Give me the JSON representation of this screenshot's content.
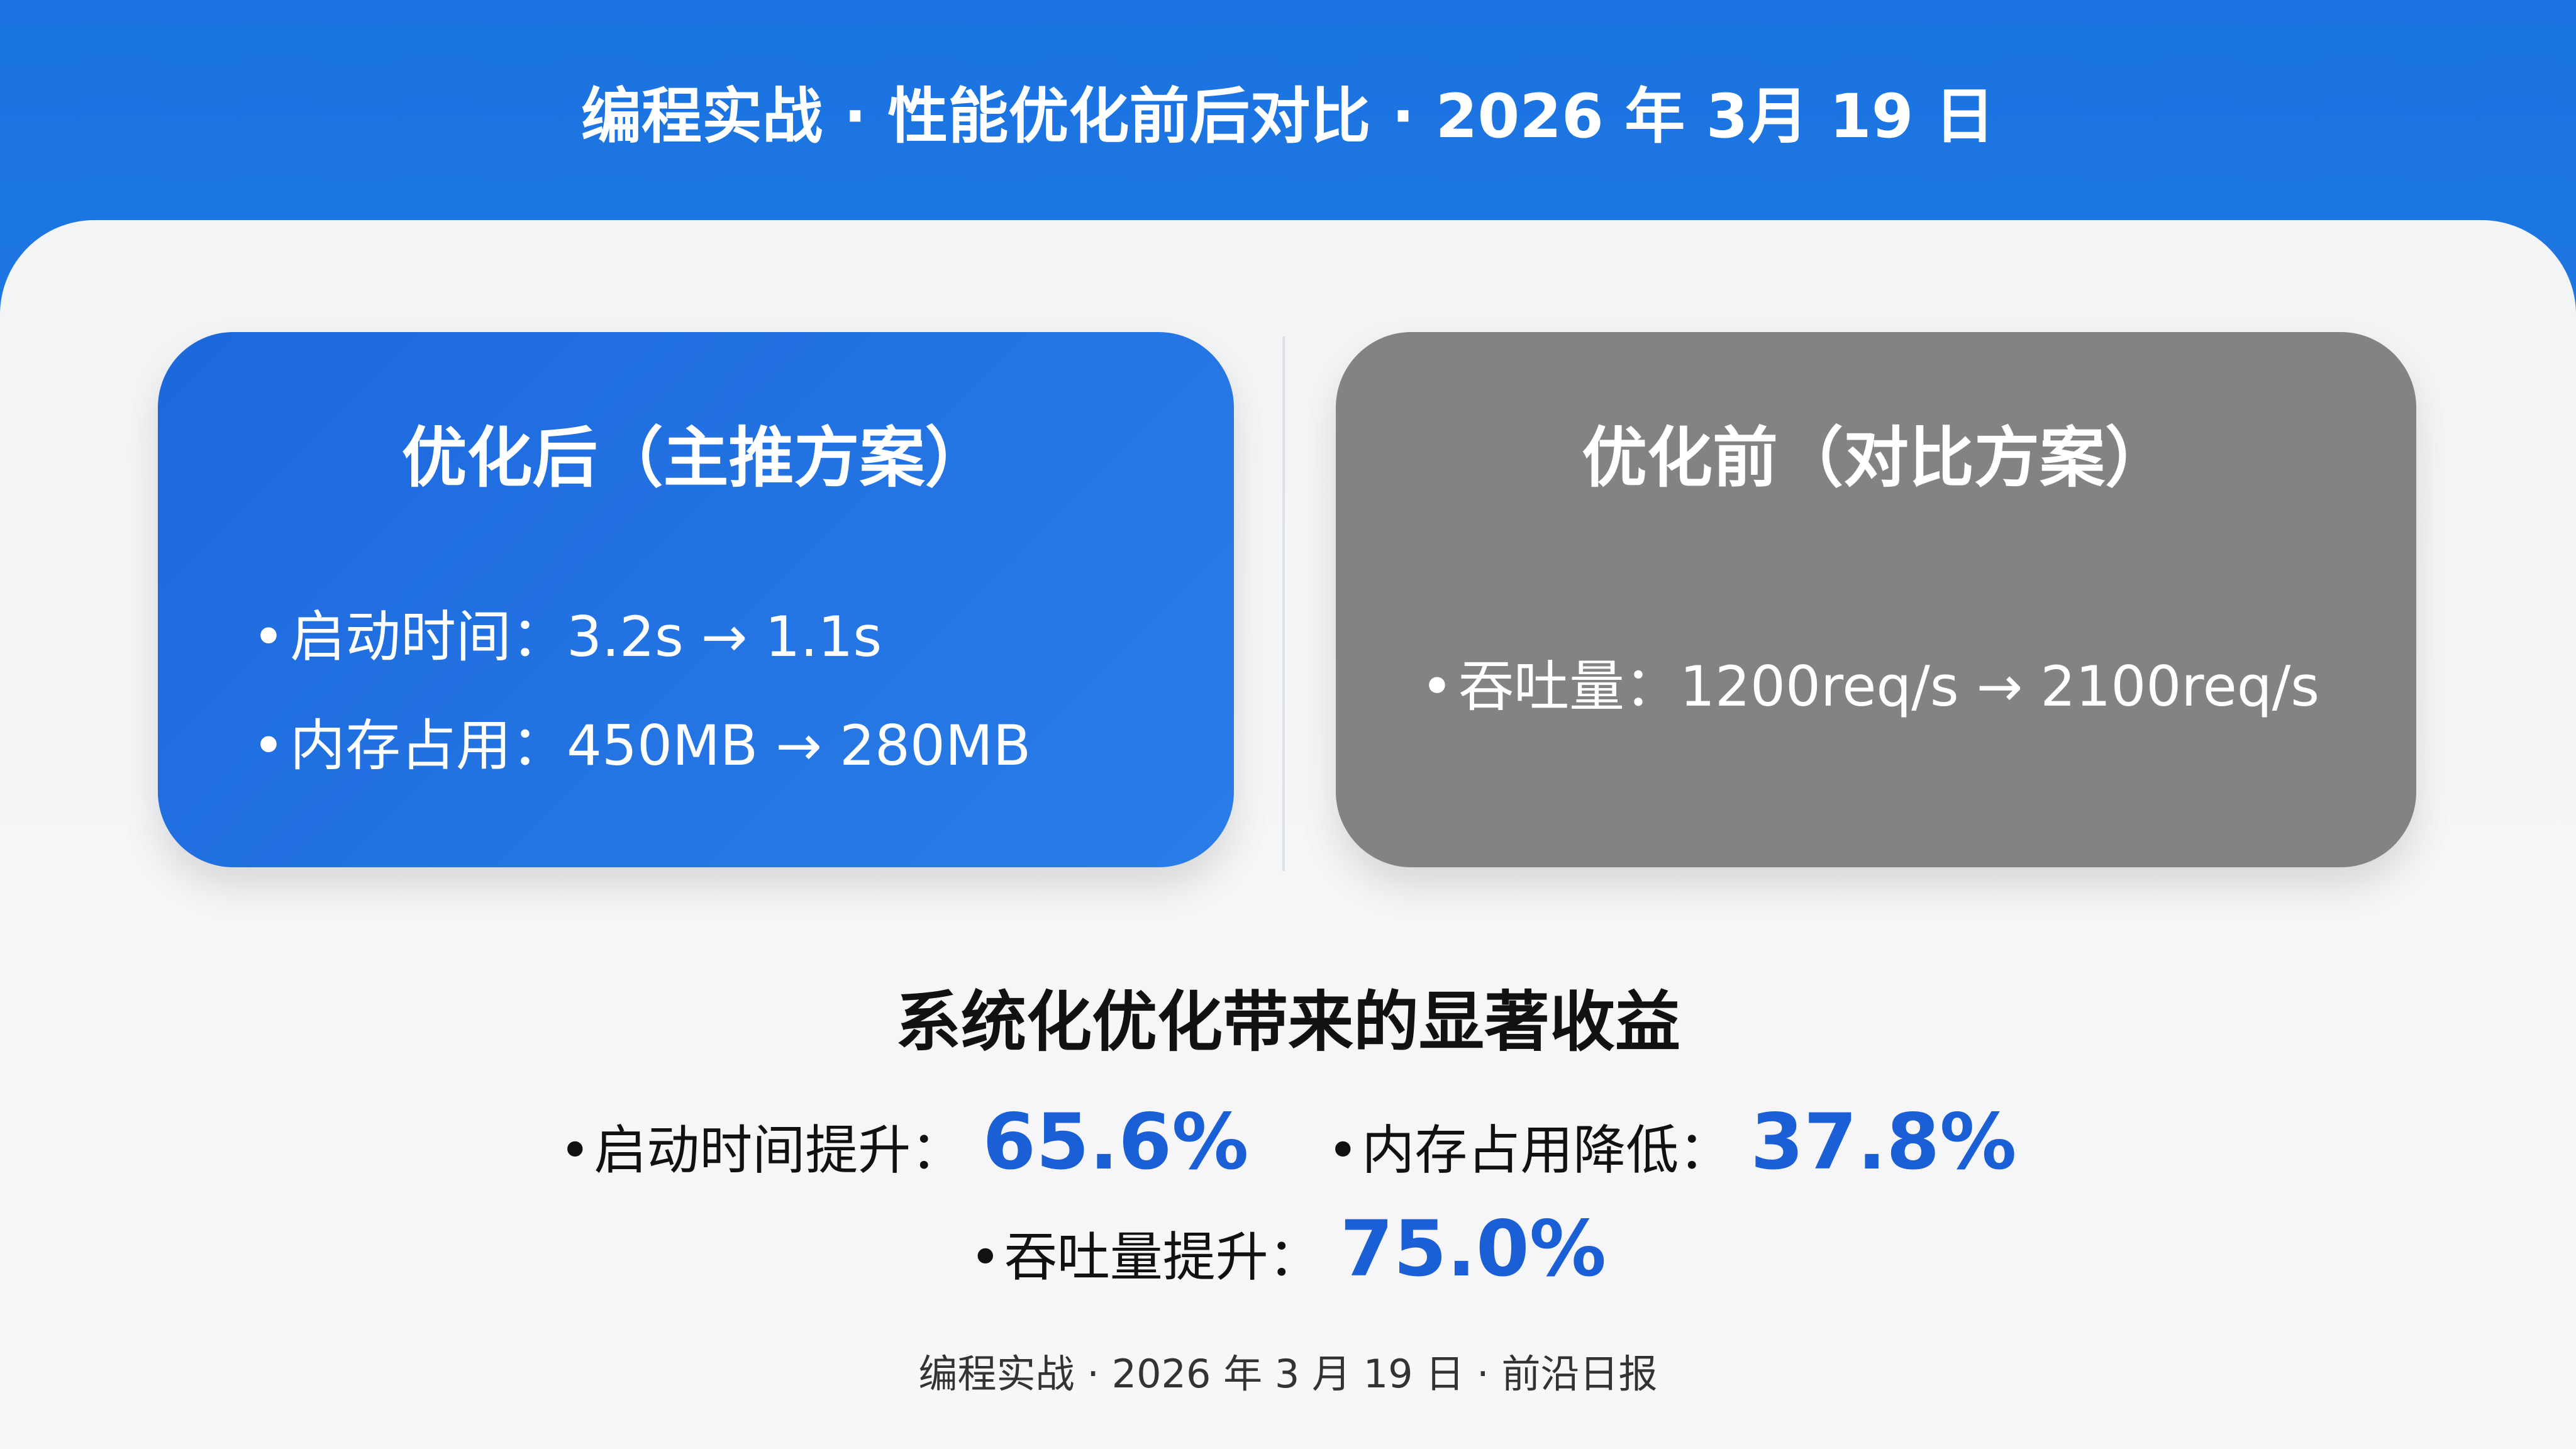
{
  "header": {
    "title": "编程实战 · 性能优化前后对比 · 2026 年 3月 19 日"
  },
  "cards": {
    "after": {
      "title": "优化后（主推方案）",
      "bullets": [
        "启动时间：3.2s → 1.1s",
        "内存占用：450MB → 280MB"
      ]
    },
    "before": {
      "title": "优化前（对比方案）",
      "bullets": [
        "吞吐量：1200req/s → 2100req/s"
      ]
    }
  },
  "summary": {
    "title": "系统化优化带来的显著收益",
    "stats": [
      {
        "label": "启动时间提升：",
        "value": "65.6%"
      },
      {
        "label": "内存占用降低：",
        "value": "37.8%"
      },
      {
        "label": "吞吐量提升：",
        "value": "75.0%"
      }
    ],
    "bullet": "•"
  },
  "footer": {
    "text": "编程实战 · 2026 年 3 月 19 日 · 前沿日报"
  },
  "colors": {
    "header_blue": "#1a73e0",
    "card_after": "#1c68dc",
    "card_before": "#858381",
    "accent": "#1a5fd6"
  }
}
